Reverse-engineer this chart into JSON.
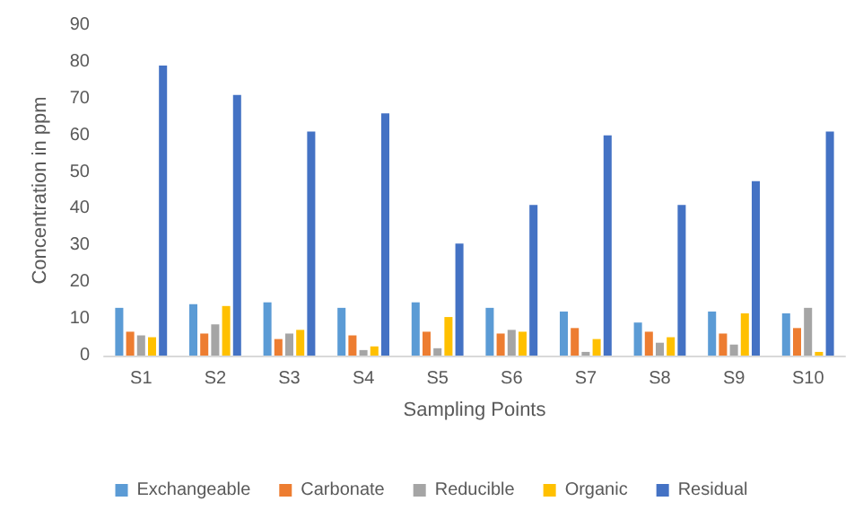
{
  "chart_data": {
    "type": "bar",
    "xlabel": "Sampling Points",
    "ylabel": "Concentration in ppm",
    "categories": [
      "S1",
      "S2",
      "S3",
      "S4",
      "S5",
      "S6",
      "S7",
      "S8",
      "S9",
      "S10"
    ],
    "series": [
      {
        "name": "Exchangeable",
        "color": "#5b9bd5",
        "values": [
          13,
          14,
          14.5,
          13,
          14.5,
          13,
          12,
          9,
          12,
          11.5
        ]
      },
      {
        "name": "Carbonate",
        "color": "#ed7d31",
        "values": [
          6.5,
          6,
          4.5,
          5.5,
          6.5,
          6,
          7.5,
          6.5,
          6,
          7.5
        ]
      },
      {
        "name": "Reducible",
        "color": "#a5a5a5",
        "values": [
          5.5,
          8.5,
          6,
          1.5,
          2,
          7,
          1,
          3.5,
          3,
          13
        ]
      },
      {
        "name": "Organic",
        "color": "#ffc000",
        "values": [
          5,
          13.5,
          7,
          2.5,
          10.5,
          6.5,
          4.5,
          5,
          11.5,
          1
        ]
      },
      {
        "name": "Residual",
        "color": "#4472c4",
        "values": [
          79,
          71,
          61,
          66,
          30.5,
          41,
          60,
          41,
          47.5,
          61
        ]
      }
    ],
    "ylim": [
      0,
      90
    ],
    "yticks": [
      0,
      10,
      20,
      30,
      40,
      50,
      60,
      70,
      80,
      90
    ],
    "legend": "bottom"
  }
}
